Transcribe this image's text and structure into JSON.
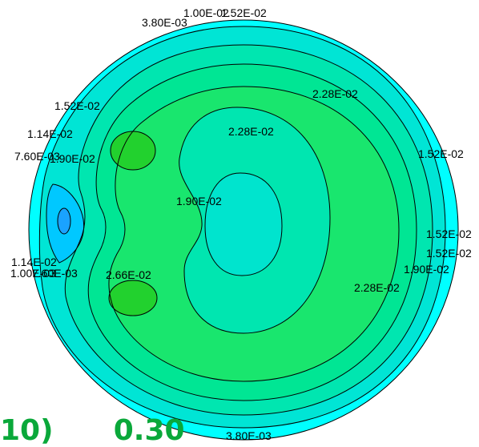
{
  "contour_labels": [
    "3.80E-03",
    "1.00E-02",
    "1.52E-02",
    "2.28E-02",
    "1.52E-02",
    "1.14E-02",
    "7.60E-03",
    "1.90E-02",
    "2.28E-02",
    "1.52E-02",
    "1.90E-02",
    "1.52E-02",
    "1.52E-02",
    "1.90E-02",
    "1.14E-02",
    "1.00E-03",
    "7.60E-03",
    "2.66E-02",
    "2.28E-02",
    "3.80E-03"
  ],
  "colors": {
    "outer": "#00ffff",
    "band1": "#00e5d5",
    "band2": "#00e6b0",
    "band3": "#00e694",
    "band4": "#19e66e",
    "peak": "#22d12e",
    "center_low": "#00e4ce",
    "left_low": "#00c8ff",
    "left_min": "#1aa2ff",
    "line": "#000000",
    "caption": "#0aa83a"
  },
  "caption": "10)      0.30"
}
